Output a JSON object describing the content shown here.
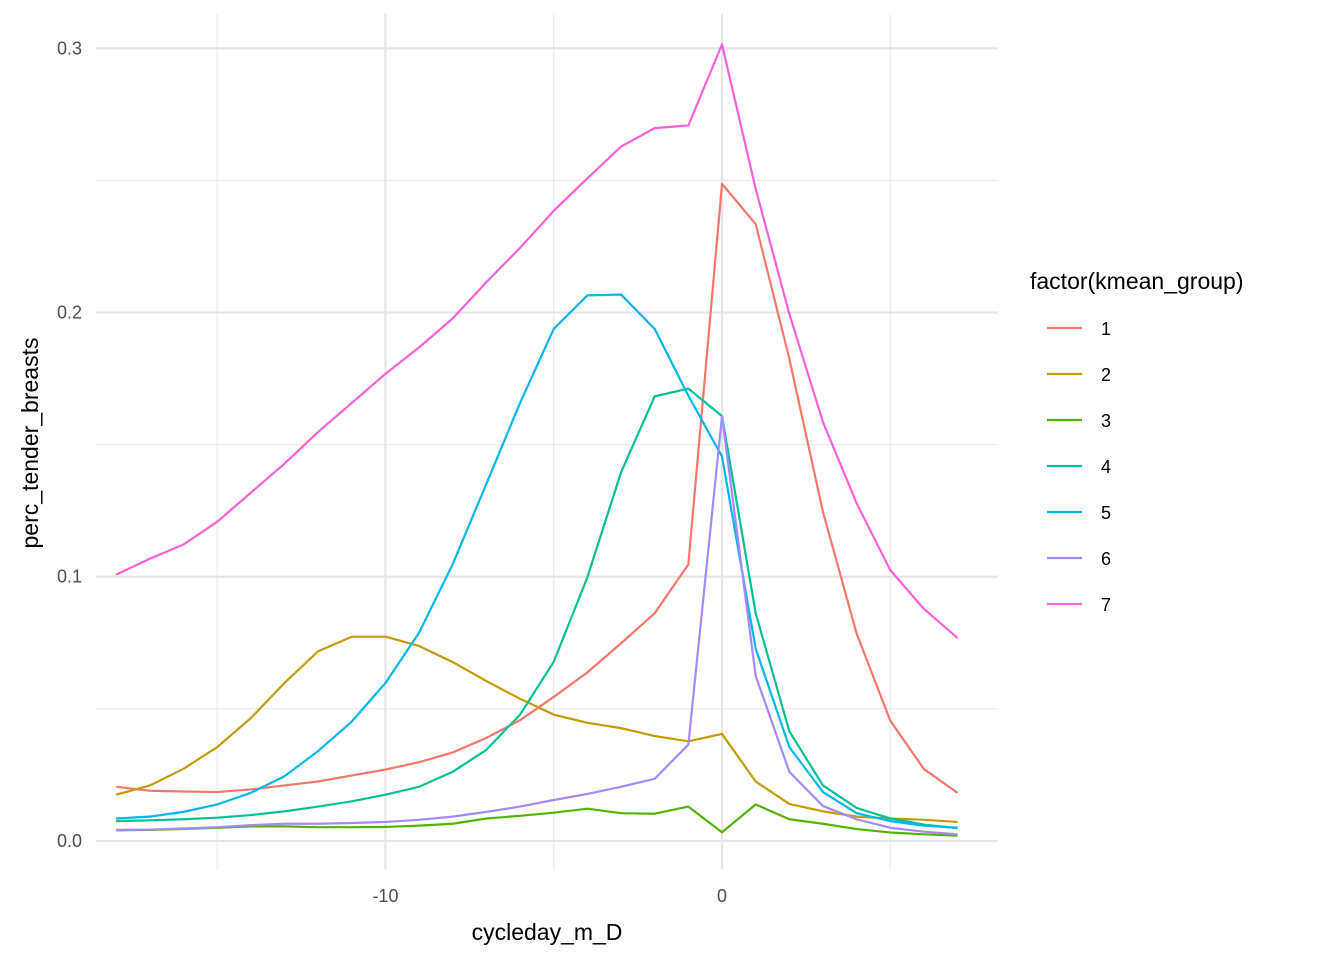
{
  "chart_data": {
    "type": "line",
    "xlabel": "cycleday_m_D",
    "ylabel": "perc_tender_breasts",
    "xlim": [
      -18.6,
      8.2
    ],
    "ylim": [
      -0.011,
      0.313
    ],
    "x_ticks": [
      -10,
      0
    ],
    "x_minor_ticks": [
      -15,
      -5,
      5
    ],
    "y_ticks": [
      0.0,
      0.1,
      0.2,
      0.3
    ],
    "y_tick_labels": [
      "0.0",
      "0.1",
      "0.2",
      "0.3"
    ],
    "y_minor_ticks": [
      0.05,
      0.15,
      0.25
    ],
    "grid": true,
    "legend": {
      "title": "factor(kmean_group)",
      "position": "right"
    },
    "x": [
      -18,
      -17,
      -16,
      -15,
      -14,
      -13,
      -12,
      -11,
      -10,
      -9,
      -8,
      -7,
      -6,
      -5,
      -4,
      -3,
      -2,
      -1,
      0,
      1,
      2,
      3,
      4,
      5,
      6,
      7
    ],
    "series": [
      {
        "name": "1",
        "color": "#F8766D",
        "values": [
          0.0205,
          0.019,
          0.0187,
          0.0185,
          0.0195,
          0.021,
          0.0225,
          0.0248,
          0.027,
          0.0298,
          0.0335,
          0.039,
          0.0457,
          0.0545,
          0.0638,
          0.0748,
          0.0862,
          0.1047,
          0.2487,
          0.2335,
          0.1825,
          0.1245,
          0.0785,
          0.0455,
          0.0272,
          0.0182
        ]
      },
      {
        "name": "2",
        "color": "#C49A00",
        "values": [
          0.0175,
          0.021,
          0.0273,
          0.0355,
          0.0465,
          0.0598,
          0.0718,
          0.0773,
          0.0773,
          0.0738,
          0.0677,
          0.0605,
          0.0538,
          0.0478,
          0.0447,
          0.0427,
          0.0397,
          0.0377,
          0.0405,
          0.0225,
          0.014,
          0.0112,
          0.0092,
          0.0085,
          0.008,
          0.0072
        ]
      },
      {
        "name": "3",
        "color": "#53B400",
        "values": [
          0.004,
          0.0042,
          0.0045,
          0.005,
          0.0055,
          0.0055,
          0.0052,
          0.0052,
          0.0053,
          0.0058,
          0.0065,
          0.0085,
          0.0095,
          0.0107,
          0.0122,
          0.0105,
          0.0103,
          0.013,
          0.0033,
          0.0138,
          0.0082,
          0.0065,
          0.0045,
          0.0032,
          0.0025,
          0.002
        ]
      },
      {
        "name": "4",
        "color": "#00C094",
        "values": [
          0.0075,
          0.0078,
          0.0082,
          0.0088,
          0.0098,
          0.0112,
          0.013,
          0.015,
          0.0175,
          0.0205,
          0.0262,
          0.0345,
          0.0478,
          0.0678,
          0.0998,
          0.1395,
          0.1683,
          0.1712,
          0.1608,
          0.0862,
          0.0415,
          0.021,
          0.0125,
          0.0085,
          0.0062,
          0.0048
        ]
      },
      {
        "name": "5",
        "color": "#00B6EB",
        "values": [
          0.0085,
          0.0092,
          0.011,
          0.0138,
          0.0182,
          0.0245,
          0.034,
          0.0452,
          0.0598,
          0.0788,
          0.1048,
          0.1352,
          0.1658,
          0.1938,
          0.2065,
          0.2068,
          0.1938,
          0.1685,
          0.1455,
          0.0728,
          0.0355,
          0.0185,
          0.0105,
          0.0075,
          0.0058,
          0.005
        ]
      },
      {
        "name": "6",
        "color": "#A58AFF",
        "values": [
          0.0042,
          0.0043,
          0.0047,
          0.0052,
          0.006,
          0.0065,
          0.0065,
          0.0068,
          0.0072,
          0.008,
          0.0092,
          0.011,
          0.013,
          0.0155,
          0.0178,
          0.0205,
          0.0235,
          0.0365,
          0.1608,
          0.0625,
          0.0262,
          0.0132,
          0.0082,
          0.005,
          0.0035,
          0.0025
        ]
      },
      {
        "name": "7",
        "color": "#FB61D7",
        "values": [
          0.1008,
          0.1068,
          0.1122,
          0.1208,
          0.1318,
          0.1428,
          0.1548,
          0.1658,
          0.1768,
          0.1868,
          0.1978,
          0.2115,
          0.2245,
          0.2385,
          0.2508,
          0.2628,
          0.2698,
          0.2708,
          0.3015,
          0.2468,
          0.1995,
          0.1585,
          0.1278,
          0.1025,
          0.0878,
          0.0768
        ]
      }
    ]
  }
}
